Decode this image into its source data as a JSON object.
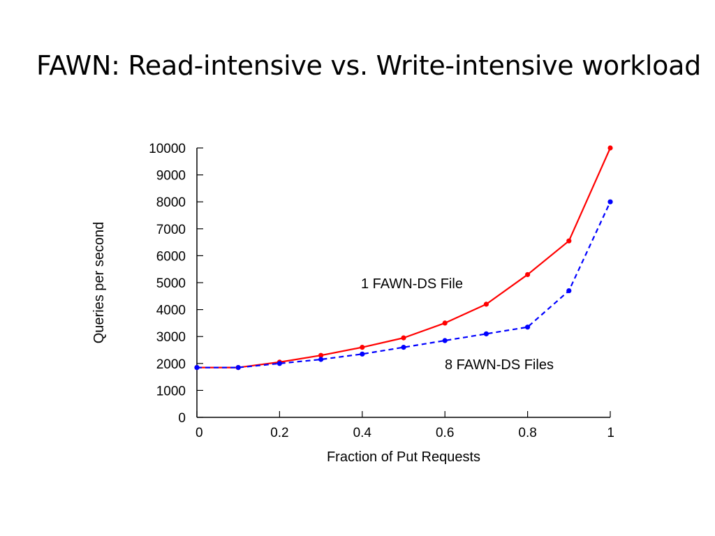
{
  "slide": {
    "title": "FAWN: Read-intensive vs. Write-intensive workload"
  },
  "chart_data": {
    "type": "line",
    "title": "",
    "xlabel": "Fraction of Put Requests",
    "ylabel": "Queries per second",
    "xlim": [
      0,
      1
    ],
    "ylim": [
      0,
      10000
    ],
    "xticks": [
      0,
      0.2,
      0.4,
      0.6,
      0.8,
      1
    ],
    "xtick_labels": [
      "0",
      "0.2",
      "0.4",
      "0.6",
      "0.8",
      "1"
    ],
    "yticks": [
      0,
      1000,
      2000,
      3000,
      4000,
      5000,
      6000,
      7000,
      8000,
      9000,
      10000
    ],
    "ytick_labels": [
      "0",
      "1000",
      "2000",
      "3000",
      "4000",
      "5000",
      "6000",
      "7000",
      "8000",
      "9000",
      "10000"
    ],
    "grid": false,
    "legend": "none",
    "x": [
      0,
      0.1,
      0.2,
      0.3,
      0.4,
      0.5,
      0.6,
      0.7,
      0.8,
      0.9,
      1
    ],
    "series": [
      {
        "name": "1 FAWN-DS File",
        "color": "#ff0000",
        "style": "solid",
        "values": [
          1850,
          1850,
          2050,
          2300,
          2600,
          2950,
          3500,
          4200,
          5300,
          6550,
          10000
        ]
      },
      {
        "name": "8 FAWN-DS Files",
        "color": "#0000ff",
        "style": "dashed",
        "values": [
          1850,
          1850,
          2000,
          2150,
          2350,
          2600,
          2850,
          3100,
          3350,
          4700,
          8000
        ]
      }
    ],
    "annotations": [
      {
        "text": "1 FAWN-DS File",
        "series": 0
      },
      {
        "text": "8 FAWN-DS Files",
        "series": 1
      }
    ]
  }
}
